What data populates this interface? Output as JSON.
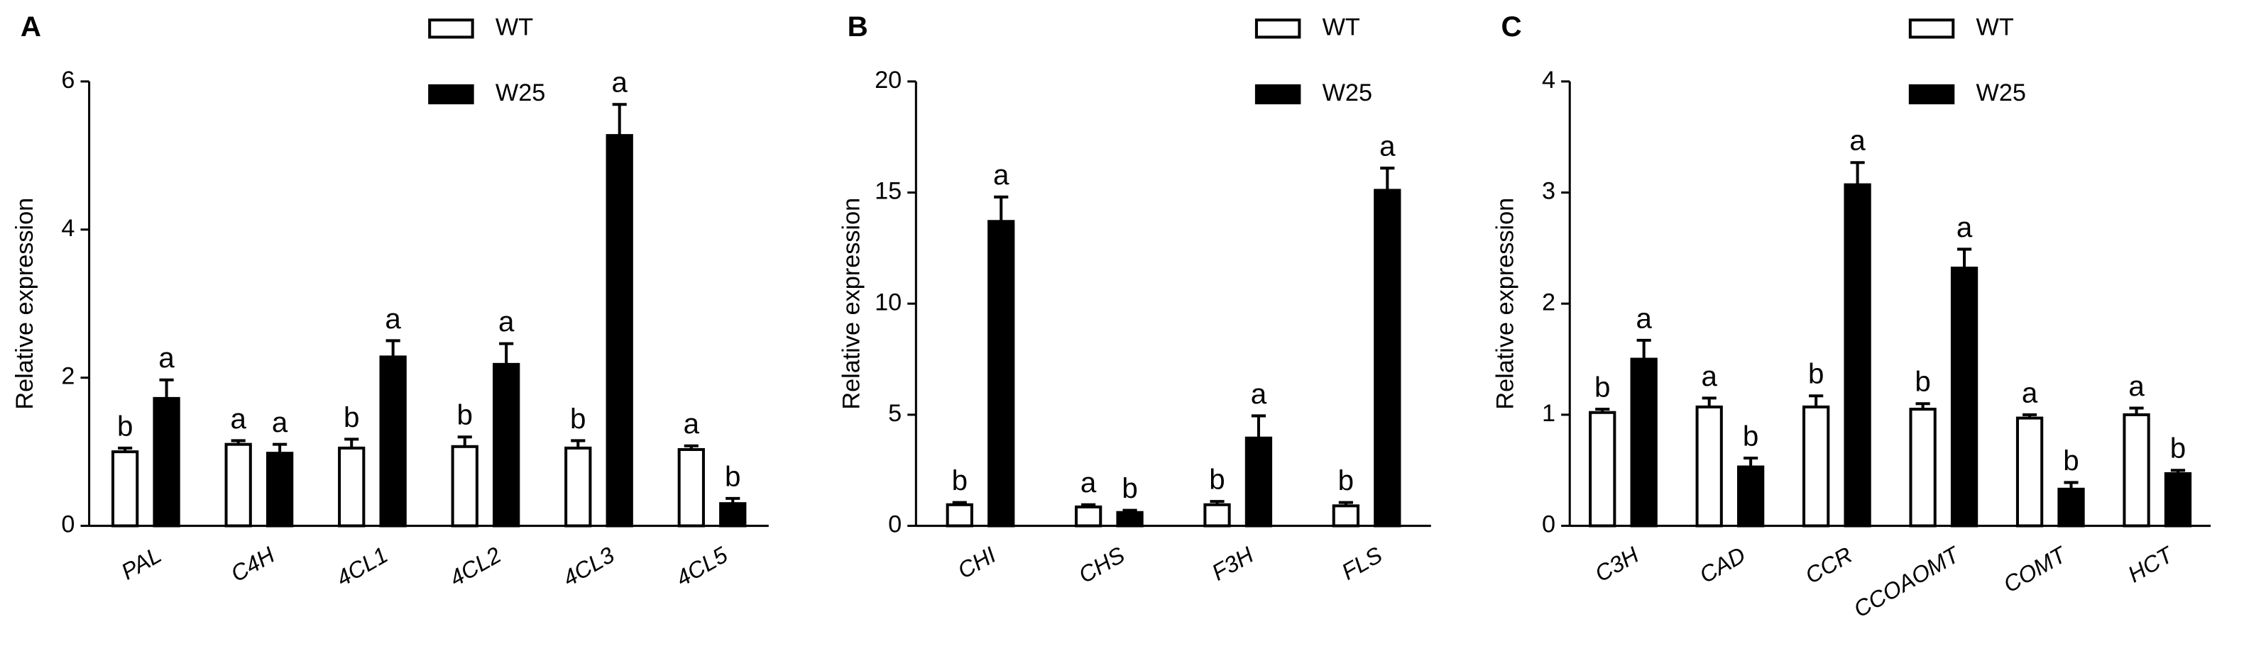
{
  "chart_data": [
    {
      "type": "bar",
      "panel_label": "A",
      "y_label": "Relative expression",
      "categories": [
        "PAL",
        "C4H",
        "4CL1",
        "4CL2",
        "4CL3",
        "4CL5"
      ],
      "series": [
        {
          "name": "WT",
          "color": "#ffffff",
          "values": [
            1.0,
            1.1,
            1.05,
            1.07,
            1.05,
            1.03
          ],
          "errors": [
            0.05,
            0.05,
            0.12,
            0.13,
            0.1,
            0.05
          ],
          "letters": [
            "b",
            "a",
            "b",
            "b",
            "b",
            "a"
          ]
        },
        {
          "name": "W25",
          "color": "#000000",
          "values": [
            1.72,
            0.98,
            2.28,
            2.18,
            5.27,
            0.3
          ],
          "errors": [
            0.25,
            0.12,
            0.22,
            0.28,
            0.42,
            0.07
          ],
          "letters": [
            "a",
            "a",
            "a",
            "a",
            "a",
            "b"
          ]
        }
      ],
      "ylim": [
        0,
        6
      ],
      "yticks": [
        0,
        2,
        4,
        6
      ]
    },
    {
      "type": "bar",
      "panel_label": "B",
      "y_label": "Relative expression",
      "categories": [
        "CHI",
        "CHS",
        "F3H",
        "FLS"
      ],
      "series": [
        {
          "name": "WT",
          "color": "#ffffff",
          "values": [
            0.95,
            0.85,
            0.95,
            0.9
          ],
          "errors": [
            0.1,
            0.1,
            0.15,
            0.15
          ],
          "letters": [
            "b",
            "a",
            "b",
            "b"
          ]
        },
        {
          "name": "W25",
          "color": "#000000",
          "values": [
            13.7,
            0.6,
            3.95,
            15.1
          ],
          "errors": [
            1.1,
            0.1,
            1.0,
            1.0
          ],
          "letters": [
            "a",
            "b",
            "a",
            "a"
          ]
        }
      ],
      "ylim": [
        0,
        20
      ],
      "yticks": [
        0,
        5,
        10,
        15,
        20
      ]
    },
    {
      "type": "bar",
      "panel_label": "C",
      "y_label": "Relative expression",
      "categories": [
        "C3H",
        "CAD",
        "CCR",
        "CCOAOMT",
        "COMT",
        "HCT"
      ],
      "series": [
        {
          "name": "WT",
          "color": "#ffffff",
          "values": [
            1.02,
            1.07,
            1.07,
            1.05,
            0.97,
            1.0
          ],
          "errors": [
            0.03,
            0.08,
            0.1,
            0.05,
            0.03,
            0.06
          ],
          "letters": [
            "b",
            "a",
            "b",
            "b",
            "a",
            "a"
          ]
        },
        {
          "name": "W25",
          "color": "#000000",
          "values": [
            1.5,
            0.53,
            3.07,
            2.32,
            0.33,
            0.47
          ],
          "errors": [
            0.17,
            0.08,
            0.2,
            0.17,
            0.06,
            0.03
          ],
          "letters": [
            "a",
            "b",
            "a",
            "a",
            "b",
            "b"
          ]
        }
      ],
      "ylim": [
        0,
        4
      ],
      "yticks": [
        0,
        1,
        2,
        3,
        4
      ]
    }
  ]
}
